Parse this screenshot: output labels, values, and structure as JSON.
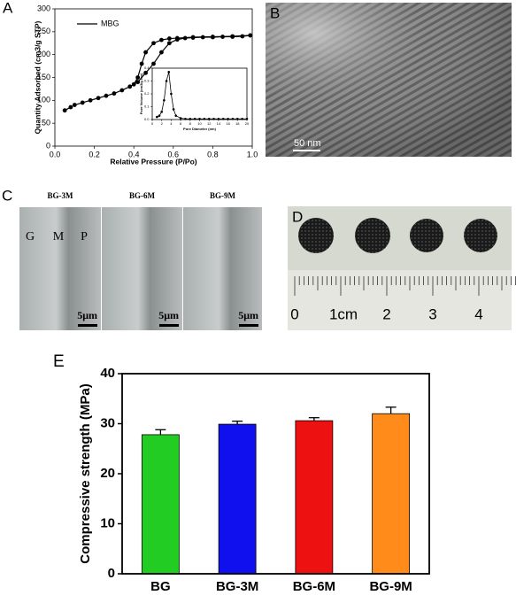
{
  "panel_labels": [
    "A",
    "B",
    "C",
    "D",
    "E"
  ],
  "chart_data": [
    {
      "type": "line",
      "xlabel": "Relative Pressure (P/Po)",
      "ylabel": "Quantity Adsorbed (cm3/g STP)",
      "series": [
        {
          "name": "MBG",
          "color": "#000000",
          "x": [
            0.05,
            0.08,
            0.1,
            0.14,
            0.18,
            0.22,
            0.26,
            0.3,
            0.34,
            0.38,
            0.42,
            0.46,
            0.5,
            0.54,
            0.58,
            0.62,
            0.66,
            0.7,
            0.75,
            0.8,
            0.85,
            0.9,
            0.95,
            0.99
          ],
          "values": [
            78,
            85,
            90,
            95,
            100,
            105,
            110,
            115,
            122,
            130,
            140,
            160,
            180,
            205,
            225,
            233,
            236,
            237,
            238,
            238,
            239,
            239,
            240,
            242
          ]
        },
        {
          "color": "#000000",
          "x": [
            0.99,
            0.9,
            0.8,
            0.7,
            0.62,
            0.58,
            0.54,
            0.5,
            0.46,
            0.44,
            0.42,
            0.4
          ],
          "values": [
            242,
            240,
            239,
            238,
            236,
            235,
            232,
            225,
            205,
            180,
            150,
            135
          ]
        }
      ],
      "xlim": [
        0,
        1
      ],
      "xticks": [
        {
          "value": 0,
          "label": "0.0"
        },
        0.2,
        0.4,
        0.6,
        0.8,
        {
          "value": 1,
          "label": "1.0"
        }
      ],
      "ylim": [
        0,
        300
      ],
      "yticks": [
        0,
        50,
        100,
        150,
        200,
        250,
        300
      ]
    },
    {
      "type": "line",
      "xlabel": "Pore Diameter (nm)",
      "ylabel": "Pore Volume (cm3/g nm)",
      "series": [
        {
          "color": "#000000",
          "x": [
            1,
            1.5,
            2,
            2.5,
            3,
            3.5,
            4,
            4.5,
            5,
            6,
            7,
            8,
            9,
            10,
            11,
            12,
            13,
            14,
            15,
            16,
            17,
            18,
            19,
            20
          ],
          "values": [
            0.02,
            0.03,
            0.06,
            0.15,
            0.3,
            0.37,
            0.2,
            0.08,
            0.03,
            0.01,
            0.005,
            0.005,
            0.005,
            0.005,
            0.005,
            0.005,
            0.005,
            0.005,
            0.005,
            0.005,
            0.005,
            0.005,
            0.005,
            0.005
          ]
        }
      ],
      "xlim": [
        0,
        20
      ],
      "xticks": [
        0,
        2,
        4,
        6,
        8,
        10,
        12,
        14,
        16,
        18,
        20
      ],
      "ylim": [
        0,
        0.4
      ],
      "yticks": [
        {
          "value": 0,
          "label": "0.0"
        },
        0.1,
        0.2,
        0.3,
        0.4
      ]
    },
    {
      "type": "bar",
      "ylabel": "Compressive strength (MPa)",
      "categories": [
        "BG",
        "BG-3M",
        "BG-6M",
        "BG-9M"
      ],
      "values": [
        27.8,
        29.9,
        30.6,
        32
      ],
      "errors": [
        1.0,
        0.6,
        0.6,
        1.3
      ],
      "colors": [
        "#22cc22",
        "#1010ee",
        "#ee1111",
        "#ff8c1a"
      ],
      "ylim": [
        0,
        40
      ],
      "yticks": [
        0,
        10,
        20,
        30,
        40
      ]
    }
  ],
  "tem": {
    "scale": "50 nm"
  },
  "sem": {
    "samples": [
      "BG-3M",
      "BG-6M",
      "BG-9M"
    ],
    "regions": [
      "G",
      "M",
      "P"
    ],
    "scale": "5μm"
  },
  "ruler": {
    "labels": [
      "0",
      "1cm",
      "2",
      "3",
      "4"
    ]
  }
}
